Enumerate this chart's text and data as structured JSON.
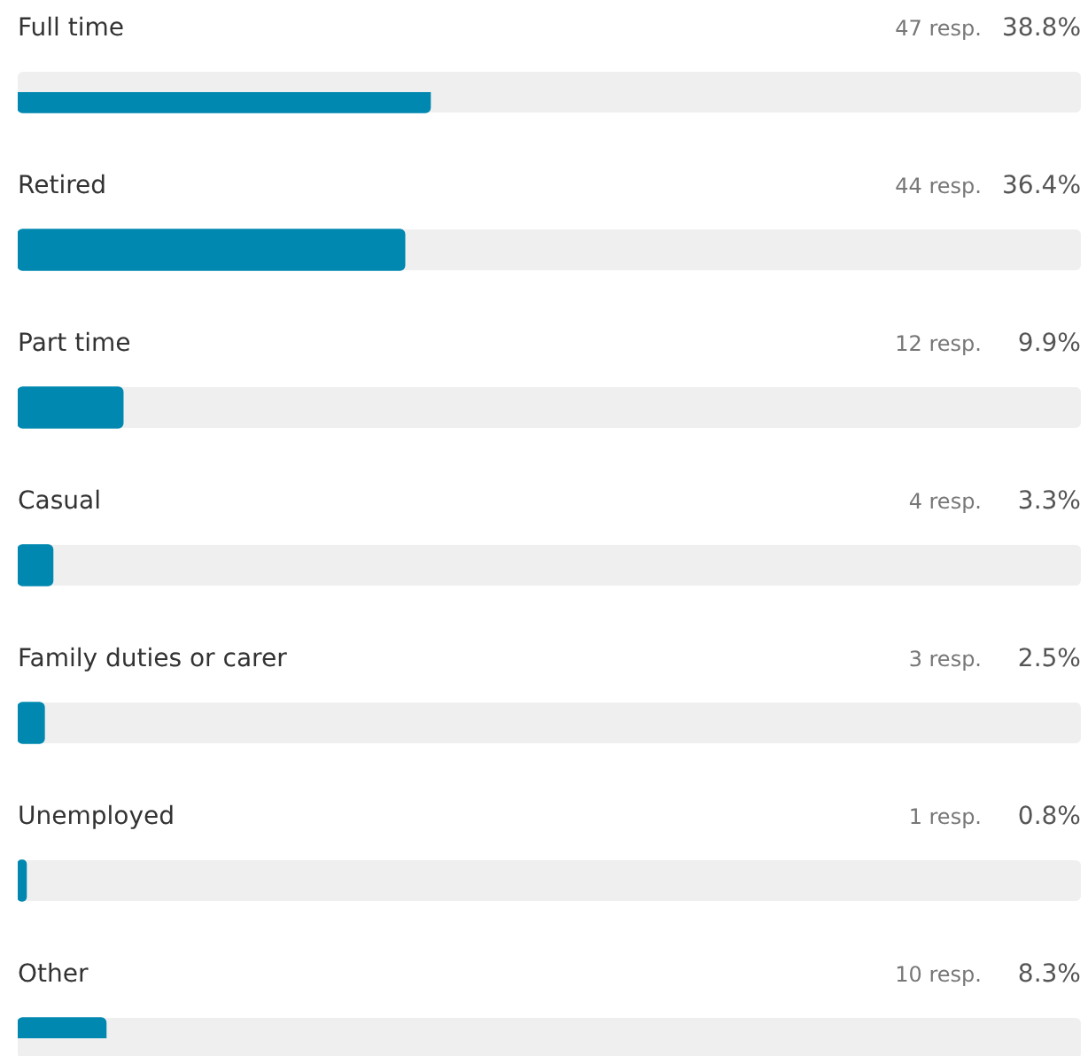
{
  "chart_data": {
    "type": "bar",
    "orientation": "horizontal",
    "categories": [
      "Full time",
      "Retired",
      "Part time",
      "Casual",
      "Family duties or carer",
      "Unemployed",
      "Other"
    ],
    "values": [
      38.8,
      36.4,
      9.9,
      3.3,
      2.5,
      0.8,
      8.3
    ],
    "value_labels": [
      "38.8%",
      "36.4%",
      "9.9%",
      "3.3%",
      "2.5%",
      "0.8%",
      "8.3%"
    ],
    "color": "#0088b0",
    "xlim": [
      0,
      100
    ],
    "tick_labels": false,
    "annotations": [
      "47 resp.",
      "44 resp.",
      "12 resp.",
      "4 resp.",
      "3 resp.",
      "1 resp.",
      "10 resp."
    ]
  }
}
